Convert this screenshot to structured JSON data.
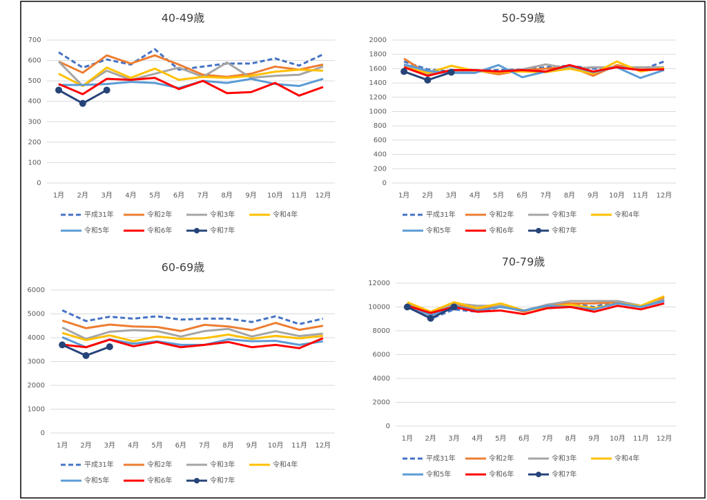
{
  "chart_data": [
    {
      "type": "line",
      "title": "40-49歳",
      "categories": [
        "1月",
        "2月",
        "3月",
        "4月",
        "5月",
        "6月",
        "7月",
        "8月",
        "9月",
        "10月",
        "11月",
        "12月"
      ],
      "ylim": [
        0,
        700
      ],
      "yticks": [
        0,
        100,
        200,
        300,
        400,
        500,
        600,
        700
      ],
      "grid": true,
      "series": [
        {
          "name": "平成31年",
          "color": "#4472c4",
          "dashed": true,
          "values": [
            640,
            565,
            605,
            580,
            655,
            555,
            570,
            585,
            585,
            610,
            575,
            630
          ]
        },
        {
          "name": "令和2年",
          "color": "#ed7d31",
          "values": [
            595,
            540,
            625,
            585,
            625,
            580,
            530,
            520,
            535,
            570,
            555,
            580
          ]
        },
        {
          "name": "令和3年",
          "color": "#a5a5a5",
          "values": [
            595,
            475,
            550,
            505,
            535,
            565,
            520,
            590,
            515,
            525,
            530,
            570
          ]
        },
        {
          "name": "令和4年",
          "color": "#ffc000",
          "values": [
            535,
            475,
            565,
            515,
            560,
            505,
            520,
            515,
            525,
            545,
            555,
            550
          ]
        },
        {
          "name": "令和5年",
          "color": "#5b9bd5",
          "values": [
            480,
            480,
            485,
            495,
            490,
            465,
            500,
            490,
            510,
            485,
            475,
            510
          ]
        },
        {
          "name": "令和6年",
          "color": "#ff0000",
          "values": [
            485,
            435,
            510,
            505,
            515,
            460,
            500,
            440,
            445,
            490,
            428,
            470
          ]
        },
        {
          "name": "令和7年",
          "color": "#264478",
          "marker": true,
          "values": [
            455,
            390,
            455,
            null,
            null,
            null,
            null,
            null,
            null,
            null,
            null,
            null
          ]
        }
      ]
    },
    {
      "type": "line",
      "title": "50-59歳",
      "categories": [
        "1月",
        "2月",
        "3月",
        "4月",
        "5月",
        "6月",
        "7月",
        "8月",
        "9月",
        "10月",
        "11月",
        "12月"
      ],
      "ylim": [
        0,
        2000
      ],
      "yticks": [
        0,
        200,
        400,
        600,
        800,
        1000,
        1200,
        1400,
        1600,
        1800,
        2000
      ],
      "grid": true,
      "series": [
        {
          "name": "平成31年",
          "color": "#4472c4",
          "dashed": true,
          "values": [
            1700,
            1590,
            1560,
            1570,
            1580,
            1590,
            1620,
            1640,
            1600,
            1620,
            1580,
            1700
          ]
        },
        {
          "name": "令和2年",
          "color": "#ed7d31",
          "values": [
            1740,
            1530,
            1570,
            1580,
            1520,
            1580,
            1600,
            1630,
            1500,
            1650,
            1590,
            1590
          ]
        },
        {
          "name": "令和3年",
          "color": "#a5a5a5",
          "values": [
            1650,
            1520,
            1560,
            1560,
            1560,
            1590,
            1660,
            1600,
            1620,
            1620,
            1620,
            1620
          ]
        },
        {
          "name": "令和4年",
          "color": "#ffc000",
          "values": [
            1620,
            1540,
            1640,
            1570,
            1550,
            1560,
            1550,
            1600,
            1530,
            1700,
            1560,
            1610
          ]
        },
        {
          "name": "令和5年",
          "color": "#5b9bd5",
          "values": [
            1660,
            1570,
            1540,
            1540,
            1650,
            1480,
            1560,
            1640,
            1550,
            1620,
            1470,
            1580
          ]
        },
        {
          "name": "令和6年",
          "color": "#ff0000",
          "values": [
            1620,
            1500,
            1580,
            1580,
            1560,
            1580,
            1560,
            1650,
            1560,
            1620,
            1580,
            1590
          ]
        },
        {
          "name": "令和7年",
          "color": "#264478",
          "marker": true,
          "values": [
            1560,
            1440,
            1550,
            null,
            null,
            null,
            null,
            null,
            null,
            null,
            null,
            null
          ]
        }
      ]
    },
    {
      "type": "line",
      "title": "60-69歳",
      "categories": [
        "1月",
        "2月",
        "3月",
        "4月",
        "5月",
        "6月",
        "7月",
        "8月",
        "9月",
        "10月",
        "11月",
        "12月"
      ],
      "ylim": [
        0,
        6000
      ],
      "yticks": [
        0,
        1000,
        2000,
        3000,
        4000,
        5000,
        6000
      ],
      "grid": true,
      "series": [
        {
          "name": "平成31年",
          "color": "#4472c4",
          "dashed": true,
          "values": [
            5150,
            4700,
            4880,
            4800,
            4900,
            4760,
            4800,
            4800,
            4660,
            4900,
            4570,
            4800
          ]
        },
        {
          "name": "令和2年",
          "color": "#ed7d31",
          "values": [
            4720,
            4400,
            4550,
            4470,
            4450,
            4280,
            4540,
            4470,
            4320,
            4620,
            4330,
            4500
          ]
        },
        {
          "name": "令和3年",
          "color": "#a5a5a5",
          "values": [
            4430,
            3950,
            4250,
            4320,
            4280,
            4050,
            4280,
            4370,
            4050,
            4270,
            4070,
            4170
          ]
        },
        {
          "name": "令和4年",
          "color": "#ffc000",
          "values": [
            4200,
            3900,
            4100,
            3850,
            4050,
            3950,
            3980,
            4130,
            3950,
            4080,
            3970,
            4080
          ]
        },
        {
          "name": "令和5年",
          "color": "#5b9bd5",
          "values": [
            4020,
            3600,
            3930,
            3750,
            3850,
            3700,
            3700,
            3930,
            3850,
            3870,
            3700,
            3850
          ]
        },
        {
          "name": "令和6年",
          "color": "#ff0000",
          "values": [
            3710,
            3600,
            3920,
            3640,
            3820,
            3600,
            3700,
            3820,
            3600,
            3700,
            3560,
            3980
          ]
        },
        {
          "name": "令和7年",
          "color": "#264478",
          "marker": true,
          "values": [
            3700,
            3250,
            3620,
            null,
            null,
            null,
            null,
            null,
            null,
            null,
            null,
            null
          ]
        }
      ]
    },
    {
      "type": "line",
      "title": "70-79歳",
      "categories": [
        "1月",
        "2月",
        "3月",
        "4月",
        "5月",
        "6月",
        "7月",
        "8月",
        "9月",
        "10月",
        "11月",
        "12月"
      ],
      "ylim": [
        0,
        12000
      ],
      "yticks": [
        0,
        2000,
        4000,
        6000,
        8000,
        10000,
        12000
      ],
      "grid": true,
      "series": [
        {
          "name": "平成31年",
          "color": "#4472c4",
          "dashed": true,
          "values": [
            10100,
            9000,
            9800,
            9600,
            10000,
            9700,
            10100,
            10300,
            10000,
            10500,
            10100,
            10600
          ]
        },
        {
          "name": "令和2年",
          "color": "#ed7d31",
          "values": [
            10300,
            9500,
            10300,
            9800,
            10100,
            9600,
            10200,
            10300,
            10300,
            10400,
            10000,
            10800
          ]
        },
        {
          "name": "令和3年",
          "color": "#a5a5a5",
          "values": [
            10100,
            9300,
            10300,
            10100,
            10100,
            9700,
            10200,
            10500,
            10500,
            10500,
            10100,
            10600
          ]
        },
        {
          "name": "令和4年",
          "color": "#ffc000",
          "values": [
            10400,
            9600,
            10400,
            9900,
            10300,
            9700,
            10000,
            10200,
            9900,
            10300,
            10100,
            10900
          ]
        },
        {
          "name": "令和5年",
          "color": "#5b9bd5",
          "values": [
            10200,
            9300,
            10100,
            9700,
            10000,
            9700,
            10100,
            10000,
            9800,
            10300,
            10000,
            10500
          ]
        },
        {
          "name": "令和6年",
          "color": "#ff0000",
          "values": [
            10100,
            9500,
            10000,
            9600,
            9700,
            9400,
            9900,
            10000,
            9600,
            10100,
            9800,
            10300
          ]
        },
        {
          "name": "令和7年",
          "color": "#264478",
          "marker": true,
          "values": [
            10000,
            9050,
            10000,
            null,
            null,
            null,
            null,
            null,
            null,
            null,
            null,
            null
          ]
        }
      ]
    }
  ]
}
